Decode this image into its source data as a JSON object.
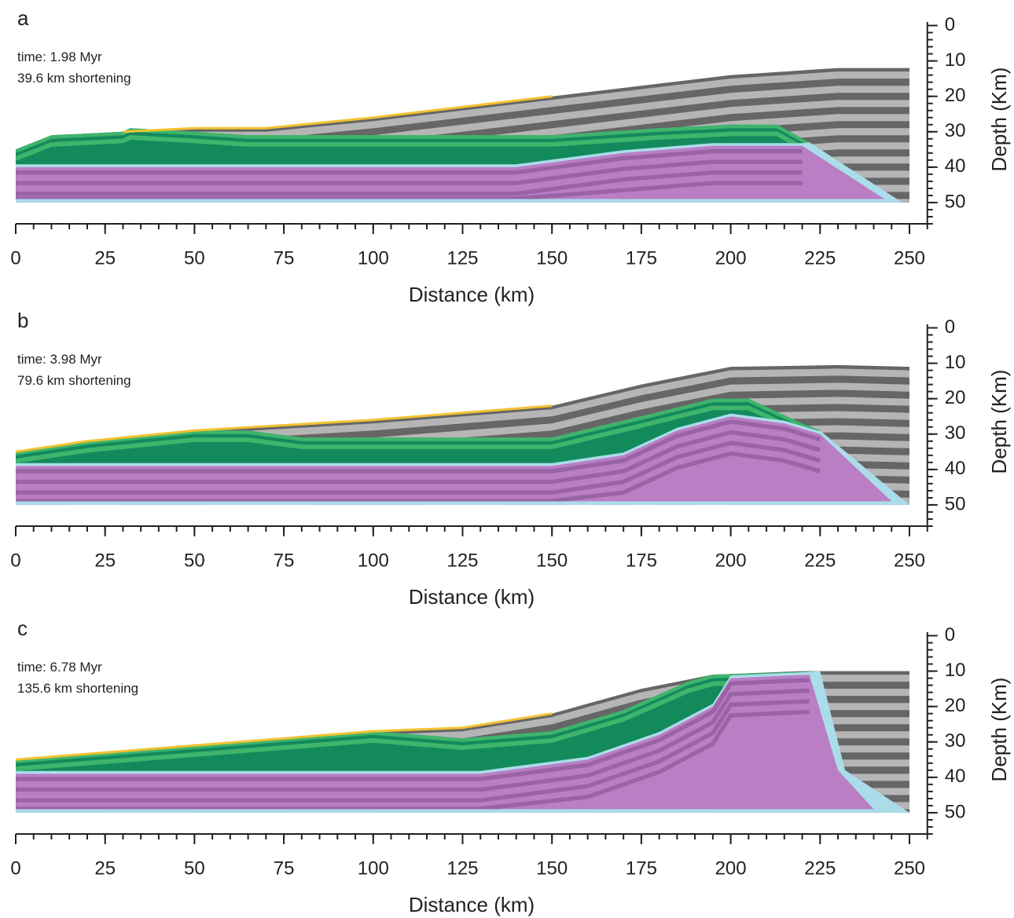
{
  "chart_data": [
    {
      "type": "cross-section",
      "panel": "a",
      "annotation": [
        "time: 1.98 Myr",
        "39.6 km shortening"
      ],
      "xlabel": "Distance (km)",
      "ylabel": "Depth (Km)",
      "xlim": [
        0,
        255
      ],
      "ylim": [
        -1,
        56
      ],
      "y_inverted": true,
      "xticks": [
        0,
        25,
        50,
        75,
        100,
        125,
        150,
        175,
        200,
        225,
        250
      ],
      "yticks": [
        0,
        10,
        20,
        30,
        40,
        50
      ],
      "xminorticks": [
        0,
        5,
        10,
        15,
        20,
        25,
        30,
        35,
        40,
        45,
        50,
        55,
        60,
        65,
        70,
        75,
        80,
        85,
        90,
        95,
        100,
        105,
        110,
        115,
        120,
        125,
        130,
        135,
        140,
        145,
        150,
        155,
        160,
        165,
        170,
        175,
        180,
        185,
        190,
        195,
        200,
        205,
        210,
        215,
        220,
        225,
        230,
        235,
        240,
        245,
        250,
        255
      ],
      "yminorticks": [
        0,
        2,
        4,
        6,
        8,
        10,
        12,
        14,
        16,
        18,
        20,
        22,
        24,
        26,
        28,
        30,
        32,
        34,
        36,
        38,
        40,
        42,
        44,
        46,
        48,
        50,
        52,
        54,
        56
      ]
    },
    {
      "type": "cross-section",
      "panel": "b",
      "annotation": [
        "time: 3.98 Myr",
        "79.6 km shortening"
      ],
      "xlabel": "Distance (km)",
      "ylabel": "Depth (Km)",
      "xlim": [
        0,
        255
      ],
      "ylim": [
        -1,
        56
      ],
      "y_inverted": true,
      "xticks": [
        0,
        25,
        50,
        75,
        100,
        125,
        150,
        175,
        200,
        225,
        250
      ],
      "yticks": [
        0,
        10,
        20,
        30,
        40,
        50
      ],
      "xminorticks": [
        0,
        5,
        10,
        15,
        20,
        25,
        30,
        35,
        40,
        45,
        50,
        55,
        60,
        65,
        70,
        75,
        80,
        85,
        90,
        95,
        100,
        105,
        110,
        115,
        120,
        125,
        130,
        135,
        140,
        145,
        150,
        155,
        160,
        165,
        170,
        175,
        180,
        185,
        190,
        195,
        200,
        205,
        210,
        215,
        220,
        225,
        230,
        235,
        240,
        245,
        250,
        255
      ],
      "yminorticks": [
        0,
        2,
        4,
        6,
        8,
        10,
        12,
        14,
        16,
        18,
        20,
        22,
        24,
        26,
        28,
        30,
        32,
        34,
        36,
        38,
        40,
        42,
        44,
        46,
        48,
        50,
        52,
        54,
        56
      ]
    },
    {
      "type": "cross-section",
      "panel": "c",
      "annotation": [
        "time: 6.78 Myr",
        "135.6 km shortening"
      ],
      "xlabel": "Distance (km)",
      "ylabel": "Depth (Km)",
      "xlim": [
        0,
        255
      ],
      "ylim": [
        -1,
        56
      ],
      "y_inverted": true,
      "xticks": [
        0,
        25,
        50,
        75,
        100,
        125,
        150,
        175,
        200,
        225,
        250
      ],
      "yticks": [
        0,
        10,
        20,
        30,
        40,
        50
      ],
      "xminorticks": [
        0,
        5,
        10,
        15,
        20,
        25,
        30,
        35,
        40,
        45,
        50,
        55,
        60,
        65,
        70,
        75,
        80,
        85,
        90,
        95,
        100,
        105,
        110,
        115,
        120,
        125,
        130,
        135,
        140,
        145,
        150,
        155,
        160,
        165,
        170,
        175,
        180,
        185,
        190,
        195,
        200,
        205,
        210,
        215,
        220,
        225,
        230,
        235,
        240,
        245,
        250,
        255
      ],
      "yminorticks": [
        0,
        2,
        4,
        6,
        8,
        10,
        12,
        14,
        16,
        18,
        20,
        22,
        24,
        26,
        28,
        30,
        32,
        34,
        36,
        38,
        40,
        42,
        44,
        46,
        48,
        50,
        52,
        54,
        56
      ]
    }
  ]
}
